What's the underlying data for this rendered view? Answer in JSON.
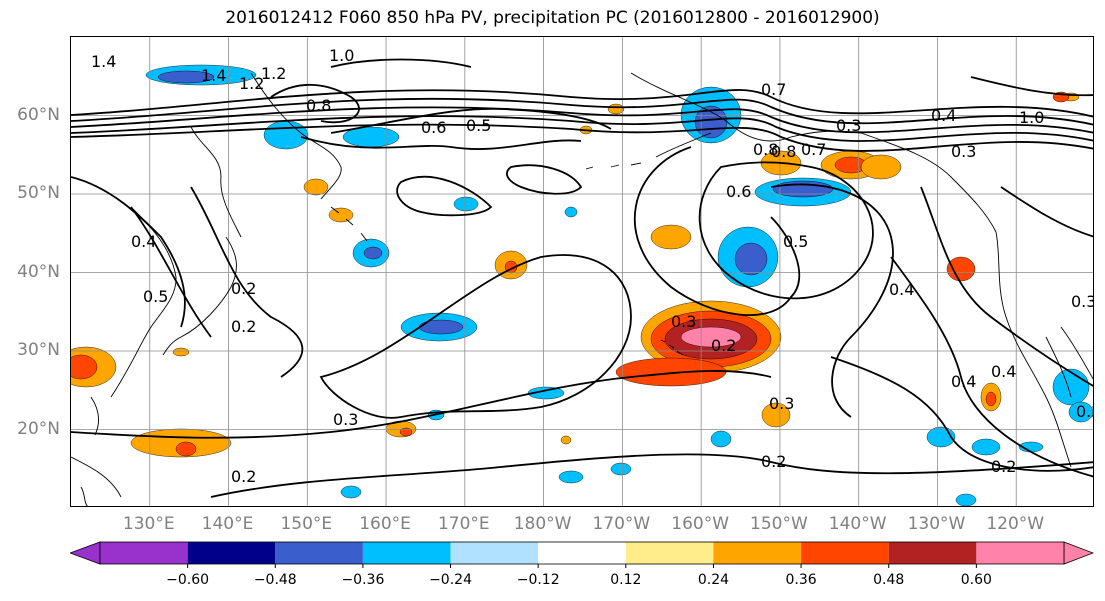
{
  "title": "2016012412 F060 850 hPa PV, precipitation PC (2016012800 - 2016012900)",
  "map": {
    "projection": "cylindrical",
    "lon_range": [
      120,
      250
    ],
    "lat_range": [
      10,
      70
    ],
    "lat_labels": [
      "60°N",
      "50°N",
      "40°N",
      "30°N",
      "20°N"
    ],
    "lon_labels": [
      "130°E",
      "140°E",
      "150°E",
      "160°E",
      "170°E",
      "180°W",
      "170°W",
      "160°W",
      "150°W",
      "140°W",
      "130°W",
      "120°W"
    ],
    "gridlines": true,
    "grid_color": "#8c8c8c",
    "coastline_color": "#000000",
    "contour_color": "#000000",
    "contour_labels": [
      "1.4",
      "1.0",
      "1.4",
      "1.2",
      "1.2",
      "0.8",
      "0.6",
      "0.5",
      "0.7",
      "0.3",
      "0.4",
      "0.3",
      "1.0",
      "0.8",
      "0.7",
      "0.8",
      "0.6",
      "0.5",
      "0.4",
      "0.4",
      "0.2",
      "0.5",
      "0.2",
      "0.3",
      "0.2",
      "0.3",
      "0.2",
      "0.3",
      "0.4",
      "0.2",
      "0.2",
      "0.3",
      "0.2",
      "0.4"
    ]
  },
  "colorbar": {
    "levels": [
      "−0.60",
      "−0.48",
      "−0.36",
      "−0.24",
      "−0.12",
      "0.12",
      "0.24",
      "0.36",
      "0.48",
      "0.60"
    ],
    "colors": [
      "#9932cc",
      "#00008b",
      "#3a5fcd",
      "#00bfff",
      "#b0e2ff",
      "#ffffff",
      "#ffec8b",
      "#ffa500",
      "#ff4500",
      "#b22222",
      "#ff82ab"
    ],
    "extend": "both"
  }
}
